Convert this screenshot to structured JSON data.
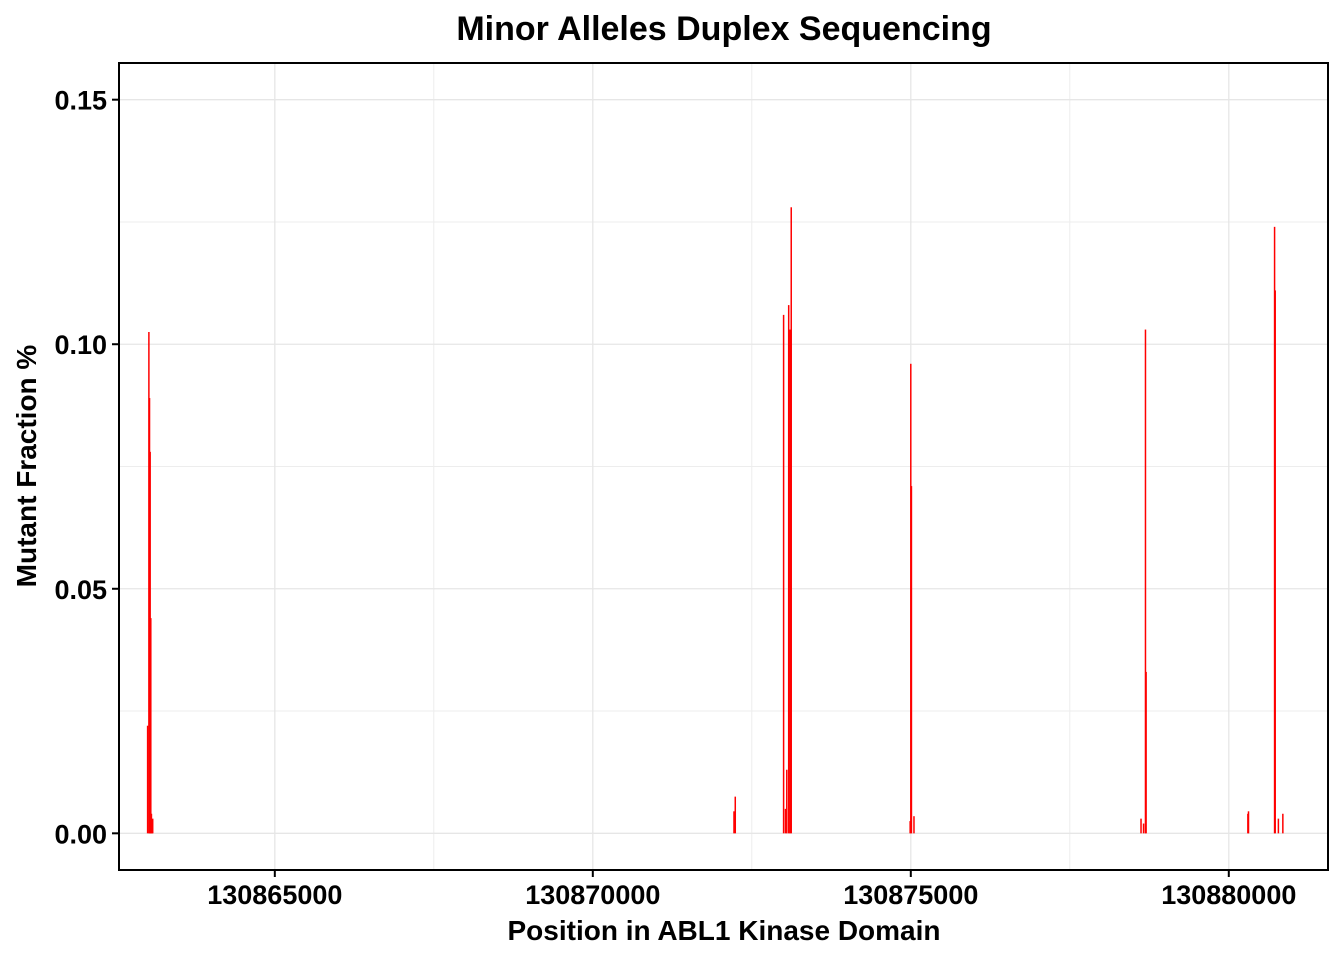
{
  "chart_data": {
    "type": "bar",
    "title": "Minor Alleles Duplex Sequencing",
    "xlabel": "Position in ABL1 Kinase Domain",
    "ylabel": "Mutant Fraction %",
    "xlim": [
      130862550,
      130881560
    ],
    "ylim": [
      -0.0075,
      0.1575
    ],
    "x_ticks": [
      130865000,
      130870000,
      130875000,
      130880000
    ],
    "x_tick_labels": [
      "130865000",
      "130870000",
      "130875000",
      "130880000"
    ],
    "y_ticks": [
      0.0,
      0.05,
      0.1,
      0.15
    ],
    "y_tick_labels": [
      "0.00",
      "0.05",
      "0.10",
      "0.15"
    ],
    "grid": true,
    "bar_color": "#ff0000",
    "series": [
      {
        "x": [
          130863000,
          130863020,
          130863030,
          130863040,
          130863050,
          130863060,
          130863070,
          130863080,
          130872220,
          130872240,
          130873000,
          130873030,
          130873050,
          130873080,
          130873100,
          130873120,
          130874990,
          130875000,
          130875010,
          130875050,
          130878620,
          130878660,
          130878690,
          130878700,
          130880300,
          130880310,
          130880720,
          130880730,
          130880780,
          130880850
        ],
        "values": [
          0.022,
          0.1025,
          0.089,
          0.078,
          0.044,
          0.004,
          0.002,
          0.003,
          0.0045,
          0.0075,
          0.106,
          0.005,
          0.013,
          0.108,
          0.103,
          0.128,
          0.0025,
          0.096,
          0.071,
          0.0035,
          0.003,
          0.002,
          0.103,
          0.033,
          0.004,
          0.0045,
          0.124,
          0.111,
          0.003,
          0.004
        ]
      }
    ]
  }
}
